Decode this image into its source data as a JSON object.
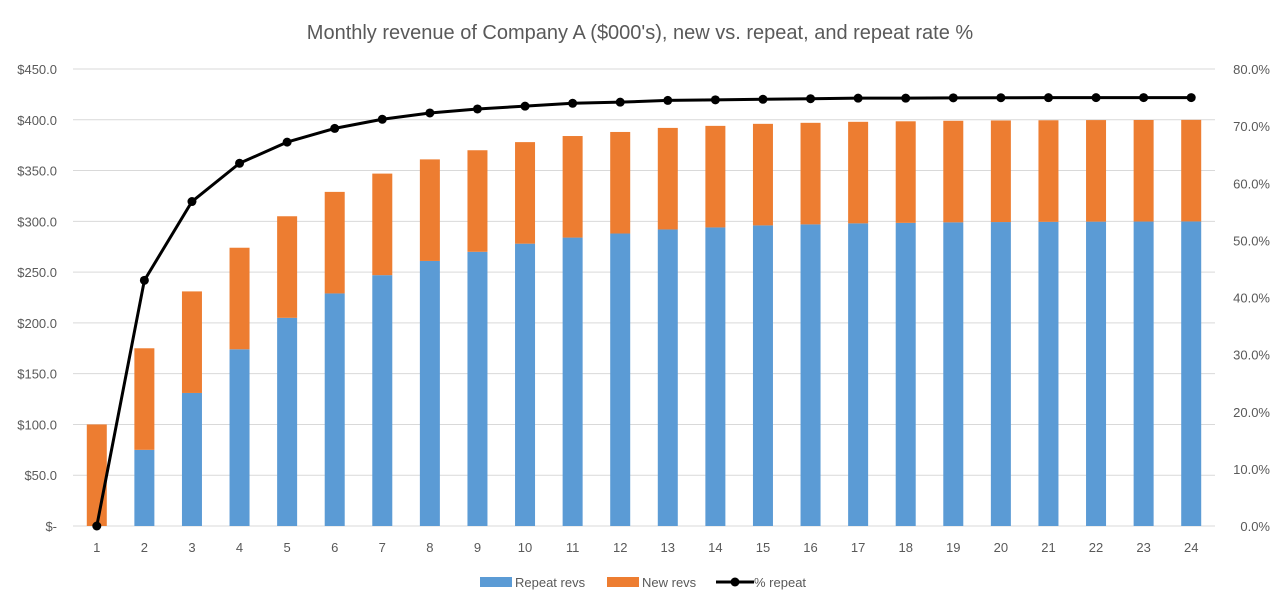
{
  "chart_data": {
    "type": "bar",
    "stacked": true,
    "title": "Monthly revenue of Company A ($000's), new vs. repeat, and repeat rate %",
    "categories": [
      "1",
      "2",
      "3",
      "4",
      "5",
      "6",
      "7",
      "8",
      "9",
      "10",
      "11",
      "12",
      "13",
      "14",
      "15",
      "16",
      "17",
      "18",
      "19",
      "20",
      "21",
      "22",
      "23",
      "24"
    ],
    "series": [
      {
        "name": "Repeat revs",
        "type": "bar",
        "axis": "left",
        "color": "#5b9bd5",
        "values": [
          0,
          75,
          131,
          174,
          205,
          229,
          247,
          261,
          270,
          278,
          284,
          288,
          292,
          294,
          296,
          297,
          298,
          298.5,
          299,
          299.3,
          299.5,
          299.7,
          299.8,
          299.9
        ]
      },
      {
        "name": "New revs",
        "type": "bar",
        "axis": "left",
        "color": "#ed7d31",
        "values": [
          100,
          100,
          100,
          100,
          100,
          100,
          100,
          100,
          100,
          100,
          100,
          100,
          100,
          100,
          100,
          100,
          100,
          100,
          100,
          100,
          100,
          100,
          100,
          100
        ]
      },
      {
        "name": "% repeat",
        "type": "line",
        "axis": "right",
        "color": "#000000",
        "values": [
          0,
          43.0,
          56.8,
          63.5,
          67.2,
          69.6,
          71.2,
          72.3,
          73.0,
          73.5,
          74.0,
          74.2,
          74.5,
          74.6,
          74.7,
          74.8,
          74.9,
          74.9,
          74.95,
          74.97,
          74.98,
          74.99,
          75.0,
          75.0
        ]
      }
    ],
    "left_axis": {
      "ylim": [
        0,
        450
      ],
      "ticks": [
        0,
        50,
        100,
        150,
        200,
        250,
        300,
        350,
        400,
        450
      ],
      "tick_labels": [
        "$-",
        "$50.0",
        "$100.0",
        "$150.0",
        "$200.0",
        "$250.0",
        "$300.0",
        "$350.0",
        "$400.0",
        "$450.0"
      ]
    },
    "right_axis": {
      "ylim": [
        0,
        80
      ],
      "ticks": [
        0,
        10,
        20,
        30,
        40,
        50,
        60,
        70,
        80
      ],
      "tick_labels": [
        "0.0%",
        "10.0%",
        "20.0%",
        "30.0%",
        "40.0%",
        "50.0%",
        "60.0%",
        "70.0%",
        "80.0%"
      ]
    },
    "grid": true,
    "legend": "bottom",
    "legend_items": [
      "Repeat revs",
      "New revs",
      "% repeat"
    ]
  }
}
